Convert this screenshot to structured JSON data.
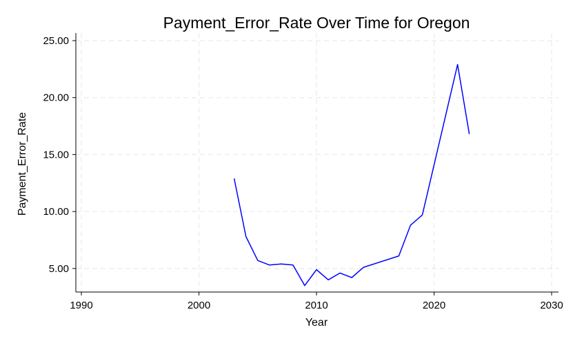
{
  "chart_data": {
    "type": "line",
    "title": "Payment_Error_Rate Over Time for Oregon",
    "xlabel": "Year",
    "ylabel": "Payment_Error_Rate",
    "xlim": [
      1990,
      2030
    ],
    "ylim": [
      2.8,
      25.8
    ],
    "x_ticks": [
      1990,
      2000,
      2010,
      2020,
      2030
    ],
    "x_tick_labels": [
      "1990",
      "2000",
      "2010",
      "2020",
      "2030"
    ],
    "y_ticks": [
      5,
      10,
      15,
      20,
      25
    ],
    "y_tick_labels": [
      "5.00",
      "10.00",
      "15.00",
      "20.00",
      "25.00"
    ],
    "grid": true,
    "legend": "none",
    "series": [
      {
        "color": "#0000ff",
        "x": [
          2003,
          2004,
          2005,
          2006,
          2007,
          2008,
          2009,
          2010,
          2011,
          2012,
          2013,
          2014,
          2017,
          2018,
          2019,
          2022,
          2023
        ],
        "values": [
          12.9,
          7.8,
          5.7,
          5.3,
          5.4,
          5.3,
          3.5,
          4.9,
          4.0,
          4.6,
          4.2,
          5.1,
          6.1,
          8.8,
          9.7,
          22.9,
          16.8
        ]
      }
    ]
  }
}
